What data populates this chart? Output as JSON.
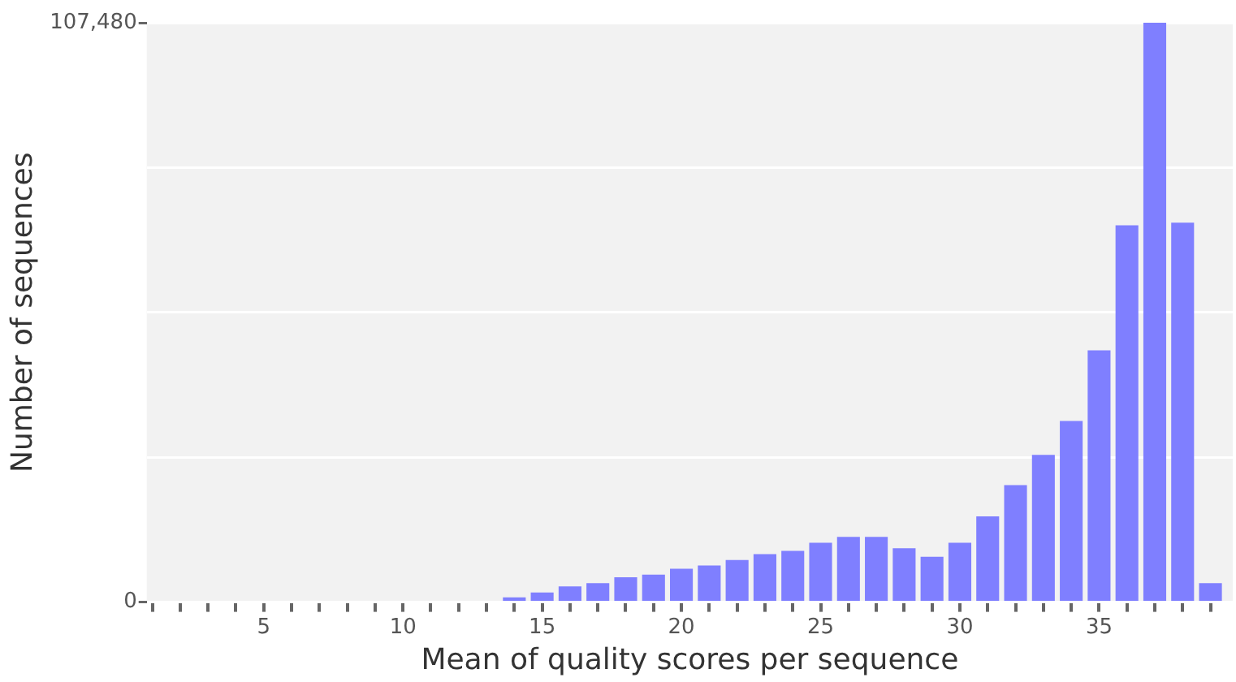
{
  "chart_data": {
    "type": "bar",
    "xlabel": "Mean of quality scores per sequence",
    "ylabel": "Number of sequences",
    "x": [
      14,
      15,
      16,
      17,
      18,
      19,
      20,
      21,
      22,
      23,
      24,
      25,
      26,
      27,
      28,
      29,
      30,
      31,
      32,
      33,
      34,
      35,
      36,
      37,
      38,
      39
    ],
    "values": [
      900,
      1800,
      2900,
      3500,
      4600,
      5100,
      6200,
      6800,
      7800,
      8900,
      9500,
      11000,
      12100,
      12100,
      10000,
      8400,
      11000,
      15900,
      21700,
      27300,
      33600,
      46700,
      69900,
      107480,
      70400,
      3500
    ],
    "color": "#7f7fff",
    "xlim": [
      0.8,
      39.8
    ],
    "xticks": [
      {
        "value": 1,
        "label": null
      },
      {
        "value": 2,
        "label": null
      },
      {
        "value": 3,
        "label": null
      },
      {
        "value": 4,
        "label": null
      },
      5,
      {
        "value": 6,
        "label": null
      },
      {
        "value": 7,
        "label": null
      },
      {
        "value": 8,
        "label": null
      },
      {
        "value": 9,
        "label": null
      },
      10,
      {
        "value": 11,
        "label": null
      },
      {
        "value": 12,
        "label": null
      },
      {
        "value": 13,
        "label": null
      },
      {
        "value": 14,
        "label": null
      },
      15,
      {
        "value": 16,
        "label": null
      },
      {
        "value": 17,
        "label": null
      },
      {
        "value": 18,
        "label": null
      },
      {
        "value": 19,
        "label": null
      },
      20,
      {
        "value": 21,
        "label": null
      },
      {
        "value": 22,
        "label": null
      },
      {
        "value": 23,
        "label": null
      },
      {
        "value": 24,
        "label": null
      },
      25,
      {
        "value": 26,
        "label": null
      },
      {
        "value": 27,
        "label": null
      },
      {
        "value": 28,
        "label": null
      },
      {
        "value": 29,
        "label": null
      },
      30,
      {
        "value": 31,
        "label": null
      },
      {
        "value": 32,
        "label": null
      },
      {
        "value": 33,
        "label": null
      },
      {
        "value": 34,
        "label": null
      },
      35,
      {
        "value": 36,
        "label": null
      },
      {
        "value": 37,
        "label": null
      },
      {
        "value": 38,
        "label": null
      },
      {
        "value": 39,
        "label": null
      }
    ],
    "ylim": [
      0,
      107480
    ],
    "yticks": [
      0,
      {
        "value": 26870,
        "label": null
      },
      {
        "value": 53740,
        "label": null
      },
      {
        "value": 80610,
        "label": null
      },
      {
        "value": 107480,
        "label": "107,480"
      }
    ],
    "grid": "y",
    "legend": false
  }
}
